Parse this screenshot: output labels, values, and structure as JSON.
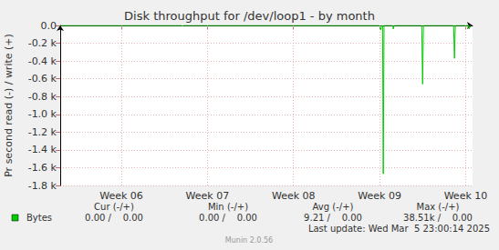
{
  "chart_data": {
    "type": "line",
    "title": "Disk throughput for /dev/loop1 - by month",
    "y_label": "Pr second read (-) / write (+)",
    "x": [
      5.29,
      6.7,
      6.71,
      6.72,
      9.0,
      9.012,
      9.025,
      9.035,
      9.043,
      9.052,
      9.15,
      9.16,
      9.17,
      9.49,
      9.5,
      9.51,
      9.86,
      9.87,
      9.88,
      10.03,
      10.04,
      10.05,
      10.06
    ],
    "series": [
      {
        "name": "Bytes",
        "color": "#00cc00",
        "values": [
          0,
          0,
          -8,
          0,
          0,
          -50,
          0,
          0,
          -1670,
          0,
          0,
          -40,
          0,
          0,
          -660,
          0,
          0,
          -370,
          0,
          0,
          -40,
          0,
          0
        ]
      }
    ],
    "xlim": [
      5.29,
      10.08
    ],
    "xticks": [
      {
        "value": 6,
        "label": "Week 06"
      },
      {
        "value": 7,
        "label": "Week 07"
      },
      {
        "value": 8,
        "label": "Week 08"
      },
      {
        "value": 9,
        "label": "Week 09"
      },
      {
        "value": 10,
        "label": "Week 10"
      }
    ],
    "ylim": [
      -1800,
      0
    ],
    "yticks": [
      {
        "value": 0,
        "label": "0.0"
      },
      {
        "value": -200,
        "label": "-0.2 k"
      },
      {
        "value": -400,
        "label": "-0.4 k"
      },
      {
        "value": -600,
        "label": "-0.6 k"
      },
      {
        "value": -800,
        "label": "-0.8 k"
      },
      {
        "value": -1000,
        "label": "-1.0 k"
      },
      {
        "value": -1200,
        "label": "-1.2 k"
      },
      {
        "value": -1400,
        "label": "-1.4 k"
      },
      {
        "value": -1600,
        "label": "-1.6 k"
      },
      {
        "value": -1800,
        "label": "-1.8 k"
      }
    ],
    "grid": true,
    "summary": {
      "headers": [
        "Cur (-/+)",
        "Min (-/+)",
        "Avg (-/+)",
        "Max (-/+)"
      ],
      "rows": [
        {
          "name": "Bytes",
          "cells": [
            "0.00 /    0.00",
            "0.00 /    0.00",
            "9.21 /    0.00",
            "38.51k /    0.00"
          ]
        }
      ]
    },
    "last_update": "Last update: Wed Mar  5 23:00:14 2025",
    "version": "Munin 2.0.56",
    "watermark": "RRDTOOL / TOBI OETIKER"
  }
}
